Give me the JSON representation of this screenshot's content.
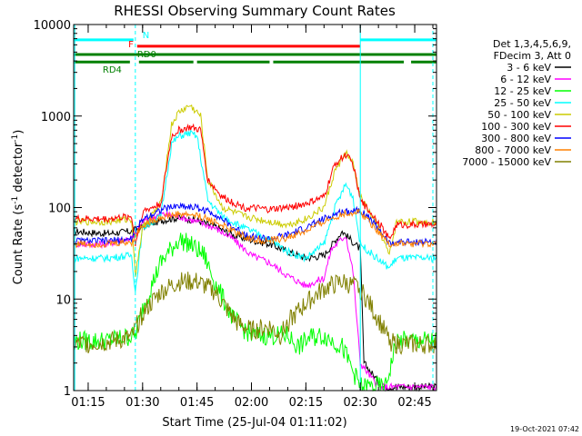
{
  "chart_data": {
    "type": "line",
    "title": "RHESSI Observing Summary Count Rates",
    "xlabel": "Start Time (25-Jul-04 01:11:02)",
    "ylabel_main": "Count Rate (s",
    "ylabel_sup": "-1",
    "ylabel_mid": " detector",
    "ylabel_sup2": "-1",
    "ylabel_end": ")",
    "yscale": "log",
    "ylim": [
      1,
      10000
    ],
    "xlim_minutes": [
      71,
      171
    ],
    "xticks": [
      {
        "min": 75,
        "label": "01:15"
      },
      {
        "min": 90,
        "label": "01:30"
      },
      {
        "min": 105,
        "label": "01:45"
      },
      {
        "min": 120,
        "label": "02:00"
      },
      {
        "min": 135,
        "label": "02:15"
      },
      {
        "min": 150,
        "label": "02:30"
      },
      {
        "min": 165,
        "label": "02:45"
      }
    ],
    "yticks": [
      {
        "v": 1,
        "label": "1"
      },
      {
        "v": 10,
        "label": "10"
      },
      {
        "v": 100,
        "label": "100"
      },
      {
        "v": 1000,
        "label": "1000"
      },
      {
        "v": 10000,
        "label": "10000"
      }
    ],
    "legend_header": [
      "Det 1,3,4,5,6,9,",
      "FDecim 3, Att 0"
    ],
    "legend_position": "right",
    "timestamp": "19-Oct-2021 07:42",
    "series": [
      {
        "name": "3 - 6 keV",
        "color": "#000000",
        "points": [
          [
            71,
            55
          ],
          [
            80,
            52
          ],
          [
            87,
            55
          ],
          [
            90,
            62
          ],
          [
            95,
            72
          ],
          [
            100,
            78
          ],
          [
            105,
            72
          ],
          [
            110,
            62
          ],
          [
            115,
            50
          ],
          [
            120,
            44
          ],
          [
            125,
            40
          ],
          [
            130,
            33
          ],
          [
            135,
            28
          ],
          [
            140,
            30
          ],
          [
            145,
            55
          ],
          [
            150,
            35
          ],
          [
            151,
            2
          ],
          [
            156,
            1.1
          ]
        ]
      },
      {
        "name": "6 - 12 keV",
        "color": "#ff00ff",
        "points": [
          [
            71,
            40
          ],
          [
            80,
            40
          ],
          [
            88,
            48
          ],
          [
            90,
            70
          ],
          [
            95,
            85
          ],
          [
            100,
            80
          ],
          [
            105,
            70
          ],
          [
            110,
            60
          ],
          [
            115,
            45
          ],
          [
            120,
            30
          ],
          [
            125,
            25
          ],
          [
            130,
            18
          ],
          [
            135,
            14
          ],
          [
            140,
            17
          ],
          [
            142,
            35
          ],
          [
            146,
            50
          ],
          [
            148,
            20
          ],
          [
            150,
            2
          ],
          [
            155,
            1.1
          ]
        ]
      },
      {
        "name": "12 - 25 keV",
        "color": "#00ff00",
        "points": [
          [
            71,
            3.5
          ],
          [
            80,
            3.5
          ],
          [
            88,
            4
          ],
          [
            90,
            8
          ],
          [
            95,
            25
          ],
          [
            100,
            45
          ],
          [
            103,
            40
          ],
          [
            107,
            30
          ],
          [
            110,
            15
          ],
          [
            115,
            6
          ],
          [
            120,
            4
          ],
          [
            130,
            4
          ],
          [
            133,
            3
          ],
          [
            136,
            3.8
          ],
          [
            140,
            4
          ],
          [
            145,
            3
          ],
          [
            150,
            1.1
          ],
          [
            157,
            1.1
          ],
          [
            160,
            3.5
          ],
          [
            171,
            3.5
          ]
        ]
      },
      {
        "name": "25 - 50 keV",
        "color": "#00ffff",
        "points": [
          [
            71,
            28
          ],
          [
            80,
            28
          ],
          [
            87,
            30
          ],
          [
            88,
            12
          ],
          [
            90,
            60
          ],
          [
            95,
            80
          ],
          [
            98,
            500
          ],
          [
            100,
            600
          ],
          [
            103,
            650
          ],
          [
            105,
            600
          ],
          [
            108,
            120
          ],
          [
            112,
            80
          ],
          [
            118,
            60
          ],
          [
            125,
            45
          ],
          [
            130,
            33
          ],
          [
            135,
            28
          ],
          [
            140,
            40
          ],
          [
            143,
            100
          ],
          [
            146,
            180
          ],
          [
            148,
            130
          ],
          [
            150,
            40
          ],
          [
            156,
            25
          ],
          [
            158,
            22
          ],
          [
            160,
            28
          ],
          [
            171,
            28
          ]
        ]
      },
      {
        "name": "50 - 100 keV",
        "color": "#cccc00",
        "points": [
          [
            71,
            70
          ],
          [
            80,
            70
          ],
          [
            87,
            75
          ],
          [
            88,
            18
          ],
          [
            90,
            60
          ],
          [
            95,
            110
          ],
          [
            98,
            800
          ],
          [
            100,
            1100
          ],
          [
            103,
            1300
          ],
          [
            106,
            1000
          ],
          [
            108,
            200
          ],
          [
            112,
            100
          ],
          [
            118,
            80
          ],
          [
            125,
            70
          ],
          [
            130,
            65
          ],
          [
            135,
            75
          ],
          [
            140,
            100
          ],
          [
            143,
            250
          ],
          [
            146,
            400
          ],
          [
            148,
            300
          ],
          [
            150,
            130
          ],
          [
            155,
            60
          ],
          [
            158,
            30
          ],
          [
            160,
            70
          ],
          [
            171,
            70
          ]
        ]
      },
      {
        "name": "100 - 300 keV",
        "color": "#ff0000",
        "points": [
          [
            71,
            75
          ],
          [
            80,
            75
          ],
          [
            87,
            80
          ],
          [
            88,
            40
          ],
          [
            90,
            90
          ],
          [
            95,
            110
          ],
          [
            98,
            600
          ],
          [
            100,
            700
          ],
          [
            103,
            750
          ],
          [
            106,
            700
          ],
          [
            108,
            200
          ],
          [
            112,
            130
          ],
          [
            118,
            100
          ],
          [
            125,
            95
          ],
          [
            130,
            100
          ],
          [
            135,
            110
          ],
          [
            140,
            130
          ],
          [
            143,
            300
          ],
          [
            146,
            380
          ],
          [
            148,
            300
          ],
          [
            150,
            120
          ],
          [
            155,
            70
          ],
          [
            158,
            45
          ],
          [
            160,
            65
          ],
          [
            171,
            65
          ]
        ]
      },
      {
        "name": "300 - 800 keV",
        "color": "#0000ff",
        "points": [
          [
            71,
            43
          ],
          [
            80,
            43
          ],
          [
            87,
            45
          ],
          [
            90,
            75
          ],
          [
            95,
            95
          ],
          [
            100,
            105
          ],
          [
            105,
            100
          ],
          [
            110,
            85
          ],
          [
            115,
            60
          ],
          [
            120,
            48
          ],
          [
            125,
            45
          ],
          [
            130,
            50
          ],
          [
            135,
            60
          ],
          [
            140,
            75
          ],
          [
            145,
            90
          ],
          [
            150,
            95
          ],
          [
            155,
            60
          ],
          [
            158,
            40
          ],
          [
            160,
            42
          ],
          [
            171,
            42
          ]
        ]
      },
      {
        "name": "800 - 7000 keV",
        "color": "#ff8000",
        "points": [
          [
            71,
            40
          ],
          [
            80,
            40
          ],
          [
            87,
            42
          ],
          [
            90,
            65
          ],
          [
            95,
            78
          ],
          [
            100,
            85
          ],
          [
            105,
            82
          ],
          [
            110,
            70
          ],
          [
            115,
            55
          ],
          [
            120,
            45
          ],
          [
            125,
            43
          ],
          [
            130,
            47
          ],
          [
            135,
            55
          ],
          [
            140,
            70
          ],
          [
            145,
            85
          ],
          [
            150,
            90
          ],
          [
            155,
            55
          ],
          [
            158,
            40
          ],
          [
            160,
            40
          ],
          [
            171,
            40
          ]
        ]
      },
      {
        "name": "7000 - 15000 keV",
        "color": "#808000",
        "points": [
          [
            71,
            3.2
          ],
          [
            80,
            3.4
          ],
          [
            87,
            3.8
          ],
          [
            90,
            7
          ],
          [
            95,
            12
          ],
          [
            100,
            15.5
          ],
          [
            105,
            15.5
          ],
          [
            110,
            12
          ],
          [
            113,
            8
          ],
          [
            116,
            5.5
          ],
          [
            120,
            4.5
          ],
          [
            125,
            5
          ],
          [
            128,
            4
          ],
          [
            130,
            5.5
          ],
          [
            135,
            9
          ],
          [
            140,
            13
          ],
          [
            145,
            15.5
          ],
          [
            150,
            13
          ],
          [
            155,
            6
          ],
          [
            158,
            3.5
          ],
          [
            160,
            3.2
          ],
          [
            171,
            3.2
          ]
        ]
      }
    ],
    "flag_bars": [
      {
        "label": "N",
        "color": "#00ffff",
        "value": 6800,
        "segments": [
          [
            71,
            87.5
          ],
          [
            150,
            171
          ]
        ]
      },
      {
        "label": "F",
        "color": "#ff0000",
        "value": 5800,
        "segments": [
          [
            88.5,
            150
          ]
        ]
      },
      {
        "label": "RD0",
        "color": "#008000",
        "value": 4700,
        "segments": [
          [
            71,
            171
          ]
        ]
      },
      {
        "label": "RD4",
        "color": "#008000",
        "value": 3900,
        "segments": [
          [
            71,
            86.5
          ],
          [
            89,
            104
          ],
          [
            105,
            125
          ],
          [
            126,
            162
          ],
          [
            164,
            171
          ]
        ]
      }
    ],
    "vlines": [
      {
        "min": 71.3,
        "color": "#00ffff",
        "dashed": false
      },
      {
        "min": 88,
        "color": "#00ffff",
        "dashed": true
      },
      {
        "min": 150,
        "color": "#00ffff",
        "dashed": false
      },
      {
        "min": 170,
        "color": "#00ffff",
        "dashed": true
      }
    ]
  }
}
